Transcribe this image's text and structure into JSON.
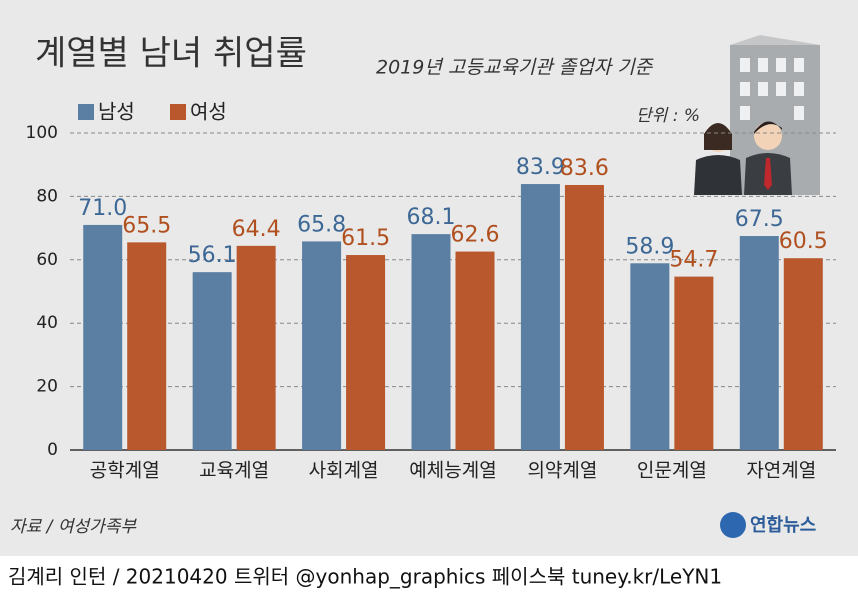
{
  "chart_data": {
    "type": "bar",
    "title": "계열별 남녀 취업률",
    "subtitle": "2019년 고등교육기관 졸업자 기준",
    "unit": "단위 : %",
    "source": "자료 / 여성가족부",
    "logo": "연합뉴스",
    "footer": "김계리 인턴 / 20210420  트위터 @yonhap_graphics  페이스북 tuney.kr/LeYN1",
    "categories": [
      "공학계열",
      "교육계열",
      "사회계열",
      "예체능계열",
      "의약계열",
      "인문계열",
      "자연계열"
    ],
    "series": [
      {
        "name": "남성",
        "color": "#5b7fa3",
        "label_color": "#3d6895",
        "values": [
          71,
          56.1,
          65.8,
          68.1,
          83.9,
          58.9,
          67.5
        ],
        "value_labels": [
          "71.0",
          "56.1",
          "65.8",
          "68.1",
          "83.9",
          "58.9",
          "67.5"
        ]
      },
      {
        "name": "여성",
        "color": "#b8582c",
        "label_color": "#b0501f",
        "values": [
          65.5,
          64.4,
          61.5,
          62.6,
          83.6,
          54.7,
          60.5
        ],
        "value_labels": [
          "65.5",
          "64.4",
          "61.5",
          "62.6",
          "83.6",
          "54.7",
          "60.5"
        ]
      }
    ],
    "ylim": [
      0,
      100
    ],
    "yticks": [
      0,
      20,
      40,
      60,
      80,
      100
    ],
    "grid": true
  }
}
